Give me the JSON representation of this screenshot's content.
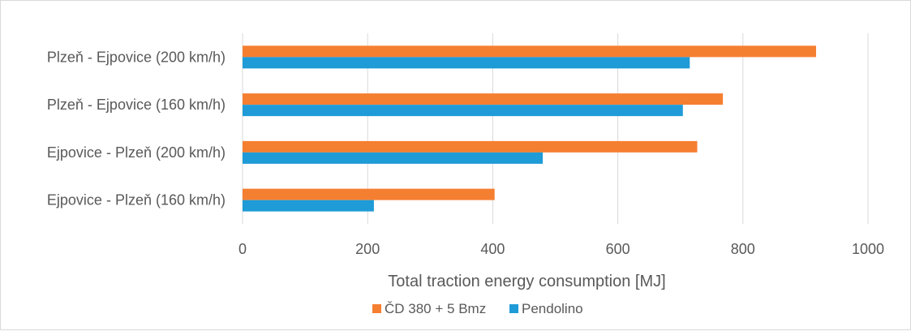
{
  "chart_data": {
    "type": "bar",
    "orientation": "horizontal",
    "categories": [
      "Plzeň - Ejpovice (200 km/h)",
      "Plzeň - Ejpovice (160 km/h)",
      "Ejpovice - Plzeň (200 km/h)",
      "Ejpovice - Plzeň (160 km/h)"
    ],
    "series": [
      {
        "name": "ČD 380 + 5 Bmz",
        "color": "#f57f31",
        "values": [
          917,
          768,
          727,
          403
        ]
      },
      {
        "name": "Pendolino",
        "color": "#1f9bd7",
        "values": [
          715,
          704,
          480,
          210
        ]
      }
    ],
    "xlabel": "Total traction energy consumption [MJ]",
    "xlim": [
      0,
      1000
    ],
    "xticks": [
      0,
      200,
      400,
      600,
      800,
      1000
    ],
    "grid": true,
    "legend_position": "bottom"
  }
}
